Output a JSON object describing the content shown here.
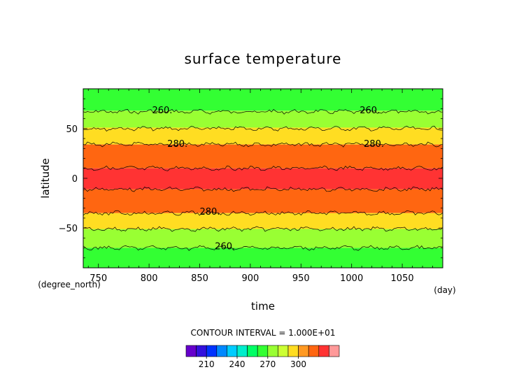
{
  "chart_data": {
    "type": "heatmap",
    "title": "surface temperature",
    "xlabel": "time",
    "ylabel": "latitude",
    "x_unit": "(day)",
    "y_unit": "(degree_north)",
    "xlim": [
      735,
      1090
    ],
    "ylim": [
      -90,
      90
    ],
    "xticks": [
      750,
      800,
      850,
      900,
      950,
      1000,
      1050
    ],
    "yticks": [
      -50,
      0,
      50
    ],
    "contour_interval_text": "CONTOUR INTERVAL = 1.000E+01",
    "contour_labels": [
      {
        "text": "260.",
        "x": 813,
        "y": 69
      },
      {
        "text": "260.",
        "x": 1018,
        "y": 69
      },
      {
        "text": "280.",
        "x": 828,
        "y": 35
      },
      {
        "text": "280.",
        "x": 1022,
        "y": 35
      },
      {
        "text": "280.",
        "x": 860,
        "y": -33
      },
      {
        "text": "260.",
        "x": 875,
        "y": -68
      }
    ],
    "bands": [
      {
        "lat_from": 90,
        "lat_to": 68,
        "color": "#33ff33"
      },
      {
        "lat_from": 68,
        "lat_to": 51,
        "color": "#99ff33"
      },
      {
        "lat_from": 51,
        "lat_to": 34,
        "color": "#ffdd22"
      },
      {
        "lat_from": 34,
        "lat_to": 10,
        "color": "#ff6611"
      },
      {
        "lat_from": 10,
        "lat_to": -11,
        "color": "#ff3333"
      },
      {
        "lat_from": -11,
        "lat_to": -35,
        "color": "#ff6611"
      },
      {
        "lat_from": -35,
        "lat_to": -51,
        "color": "#ffdd22"
      },
      {
        "lat_from": -51,
        "lat_to": -70,
        "color": "#99ff33"
      },
      {
        "lat_from": -70,
        "lat_to": -90,
        "color": "#33ff33"
      }
    ],
    "contours": [
      {
        "lat": 67,
        "label": "260."
      },
      {
        "lat": 50,
        "label": ""
      },
      {
        "lat": 34,
        "label": "280."
      },
      {
        "lat": 10,
        "label": ""
      },
      {
        "lat": -11,
        "label": ""
      },
      {
        "lat": -35,
        "label": "280."
      },
      {
        "lat": -51,
        "label": ""
      },
      {
        "lat": -70,
        "label": "260."
      }
    ],
    "colorbar": {
      "colors": [
        "#6600cc",
        "#3311dd",
        "#0033ff",
        "#0088ff",
        "#00ccff",
        "#00eecc",
        "#00ff66",
        "#33ff33",
        "#99ff33",
        "#ccff33",
        "#ffdd22",
        "#ff9922",
        "#ff6611",
        "#ff3333",
        "#ff9999"
      ],
      "tick_labels": [
        "210",
        "240",
        "270",
        "300"
      ]
    }
  }
}
